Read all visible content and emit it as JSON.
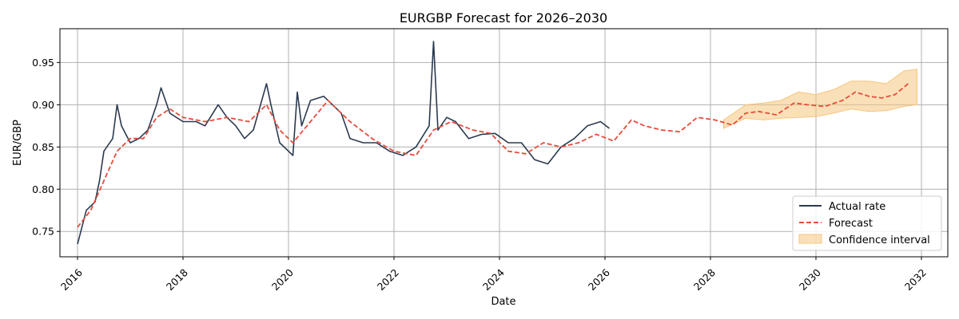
{
  "chart_data": {
    "type": "line",
    "title": "EURGBP Forecast for 2026–2030",
    "xlabel": "Date",
    "ylabel": "EUR/GBP",
    "xlim": [
      "2015-09-01",
      "2032-07-01"
    ],
    "ylim": [
      0.72,
      0.99
    ],
    "x_ticks": [
      "2016",
      "2018",
      "2020",
      "2022",
      "2024",
      "2026",
      "2028",
      "2030",
      "2032"
    ],
    "y_ticks": [
      "0.75",
      "0.80",
      "0.85",
      "0.90",
      "0.95"
    ],
    "grid": true,
    "legend_position": "bottom-right",
    "colors": {
      "actual": "#2b3a4f",
      "forecast": "#e74c3c",
      "confidence": "#f5c67e"
    },
    "series": [
      {
        "name": "Actual rate",
        "style": "solid",
        "x": [
          "2016-01",
          "2016-03",
          "2016-05",
          "2016-06",
          "2016-07",
          "2016-09",
          "2016-10",
          "2016-11",
          "2017-01",
          "2017-03",
          "2017-05",
          "2017-07",
          "2017-08",
          "2017-10",
          "2018-01",
          "2018-04",
          "2018-06",
          "2018-09",
          "2018-11",
          "2019-01",
          "2019-03",
          "2019-05",
          "2019-08",
          "2019-09",
          "2019-11",
          "2020-01",
          "2020-02",
          "2020-03",
          "2020-04",
          "2020-06",
          "2020-09",
          "2020-11",
          "2021-01",
          "2021-03",
          "2021-06",
          "2021-09",
          "2021-12",
          "2022-03",
          "2022-06",
          "2022-09",
          "2022-10",
          "2022-11",
          "2023-01",
          "2023-03",
          "2023-06",
          "2023-09",
          "2023-12",
          "2024-03",
          "2024-06",
          "2024-09",
          "2024-12",
          "2025-03",
          "2025-06",
          "2025-09",
          "2025-12",
          "2026-02"
        ],
        "y": [
          0.735,
          0.775,
          0.785,
          0.81,
          0.845,
          0.86,
          0.9,
          0.875,
          0.855,
          0.86,
          0.87,
          0.9,
          0.92,
          0.89,
          0.88,
          0.88,
          0.875,
          0.9,
          0.885,
          0.875,
          0.86,
          0.87,
          0.925,
          0.9,
          0.855,
          0.845,
          0.84,
          0.915,
          0.875,
          0.905,
          0.91,
          0.9,
          0.89,
          0.86,
          0.855,
          0.855,
          0.845,
          0.84,
          0.85,
          0.875,
          0.975,
          0.87,
          0.885,
          0.88,
          0.86,
          0.865,
          0.866,
          0.855,
          0.855,
          0.835,
          0.83,
          0.85,
          0.86,
          0.875,
          0.88,
          0.872
        ]
      },
      {
        "name": "Forecast",
        "style": "dashed",
        "x": [
          "2016-01",
          "2016-04",
          "2016-07",
          "2016-10",
          "2017-01",
          "2017-04",
          "2017-07",
          "2017-10",
          "2018-01",
          "2018-06",
          "2018-11",
          "2019-04",
          "2019-08",
          "2019-11",
          "2020-02",
          "2020-06",
          "2020-10",
          "2021-03",
          "2021-08",
          "2022-01",
          "2022-06",
          "2022-10",
          "2023-02",
          "2023-07",
          "2023-11",
          "2024-03",
          "2024-07",
          "2024-11",
          "2025-03",
          "2025-07",
          "2025-11",
          "2026-03",
          "2026-07",
          "2026-10",
          "2027-02",
          "2027-06",
          "2027-10",
          "2028-02",
          "2028-06",
          "2028-09",
          "2028-12",
          "2029-04",
          "2029-08",
          "2029-11",
          "2030-03",
          "2030-07",
          "2030-10",
          "2031-01",
          "2031-04",
          "2031-07",
          "2031-10"
        ],
        "y": [
          0.755,
          0.775,
          0.81,
          0.845,
          0.86,
          0.86,
          0.885,
          0.895,
          0.885,
          0.88,
          0.885,
          0.88,
          0.9,
          0.87,
          0.855,
          0.88,
          0.905,
          0.88,
          0.86,
          0.845,
          0.84,
          0.87,
          0.88,
          0.87,
          0.866,
          0.845,
          0.842,
          0.855,
          0.85,
          0.855,
          0.865,
          0.857,
          0.882,
          0.875,
          0.87,
          0.868,
          0.885,
          0.882,
          0.876,
          0.89,
          0.892,
          0.888,
          0.902,
          0.9,
          0.898,
          0.905,
          0.915,
          0.91,
          0.908,
          0.912,
          0.925
        ]
      }
    ],
    "confidence_interval": {
      "name": "Confidence interval",
      "x": [
        "2028-04",
        "2028-09",
        "2029-01",
        "2029-05",
        "2029-09",
        "2030-01",
        "2030-05",
        "2030-09",
        "2031-01",
        "2031-05",
        "2031-09",
        "2031-12"
      ],
      "lower": [
        0.872,
        0.884,
        0.882,
        0.884,
        0.885,
        0.886,
        0.89,
        0.895,
        0.892,
        0.893,
        0.898,
        0.9
      ],
      "upper": [
        0.882,
        0.9,
        0.902,
        0.905,
        0.915,
        0.912,
        0.918,
        0.928,
        0.928,
        0.925,
        0.94,
        0.942
      ]
    }
  }
}
